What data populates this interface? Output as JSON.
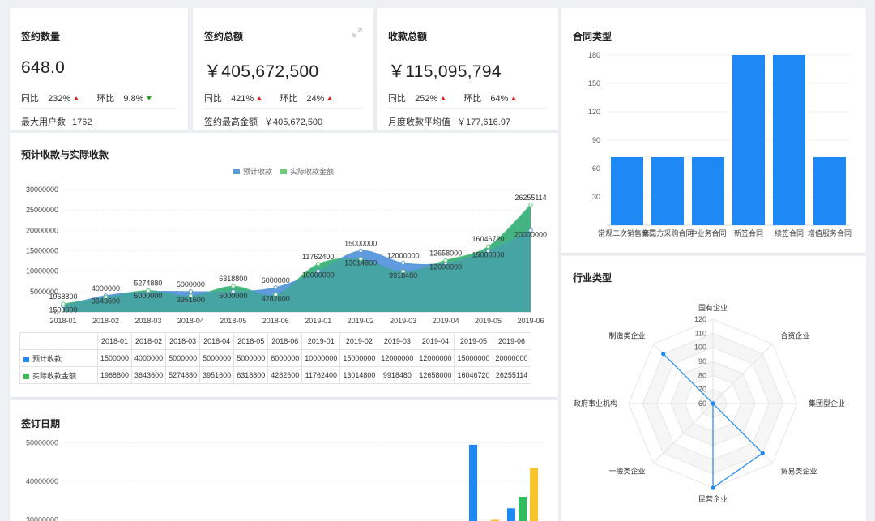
{
  "kpis": [
    {
      "title": "签约数量",
      "value": "648.0",
      "yoy_label": "同比",
      "yoy_value": "232%",
      "yoy_dir": "up",
      "mom_label": "环比",
      "mom_value": "9.8%",
      "mom_dir": "down",
      "footer_label": "最大用户数",
      "footer_value": "1762"
    },
    {
      "title": "签约总额",
      "value": "￥405,672,500",
      "yoy_label": "同比",
      "yoy_value": "421%",
      "yoy_dir": "up",
      "mom_label": "环比",
      "mom_value": "24%",
      "mom_dir": "up",
      "footer_label": "签约最高金额",
      "footer_value": "￥405,672,500"
    },
    {
      "title": "收款总额",
      "value": "￥115,095,794",
      "yoy_label": "同比",
      "yoy_value": "252%",
      "yoy_dir": "up",
      "mom_label": "环比",
      "mom_value": "64%",
      "mom_dir": "up",
      "footer_label": "月度收款平均值",
      "footer_value": "￥177,616.97"
    }
  ],
  "colors": {
    "blue": "#5b9bd5",
    "blue_fill": "#4f8fdc",
    "green": "#67cd7b",
    "green_fill": "#3fb27f",
    "bar_blue": "#1e88f5",
    "bar_yellow": "#f7c42b",
    "up": "#e02020",
    "down": "#2ea121"
  },
  "collection_chart": {
    "title": "预计收款与实际收款",
    "chart_data": {
      "type": "area",
      "categories": [
        "2018-01",
        "2018-02",
        "2018-03",
        "2018-04",
        "2018-05",
        "2018-06",
        "2019-01",
        "2019-02",
        "2019-03",
        "2019-04",
        "2019-05",
        "2019-06"
      ],
      "series": [
        {
          "name": "预计收款",
          "values": [
            1500000,
            4000000,
            5000000,
            5000000,
            5000000,
            6000000,
            10000000,
            15000000,
            12000000,
            12000000,
            15000000,
            20000000
          ]
        },
        {
          "name": "实际收款金额",
          "values": [
            1968800,
            3643600,
            5274880,
            3951600,
            6318800,
            4282600,
            11762400,
            13014800,
            9918480,
            12658000,
            16046720,
            26255114
          ]
        }
      ],
      "y_ticks": [
        "0",
        "5000000",
        "10000000",
        "15000000",
        "20000000",
        "25000000",
        "30000000"
      ],
      "ylim": [
        0,
        30000000
      ],
      "legend": "top"
    }
  },
  "contract_chart": {
    "title": "合同类型",
    "chart_data": {
      "type": "bar",
      "categories": [
        "常规二次销售合同",
        "第三方采购合同",
        "中业务合同",
        "新签合同",
        "续签合同",
        "增值服务合同"
      ],
      "values": [
        72,
        72,
        72,
        180,
        180,
        72
      ],
      "y_ticks": [
        "30",
        "60",
        "90",
        "120",
        "150",
        "180"
      ],
      "ylim": [
        0,
        180
      ]
    }
  },
  "industry_chart": {
    "title": "行业类型",
    "chart_data": {
      "type": "radar",
      "indicators": [
        "国有企业",
        "合资企业",
        "集团型企业",
        "贸易类企业",
        "民营企业",
        "一般类企业",
        "政府事业机构",
        "制造类企业"
      ],
      "values": [
        60,
        60,
        60,
        110,
        120,
        60,
        60,
        110
      ],
      "r_ticks": [
        "60",
        "70",
        "80",
        "90",
        "100",
        "110",
        "120"
      ],
      "rlim": [
        60,
        120
      ]
    }
  },
  "date_chart": {
    "title": "签订日期",
    "chart_data": {
      "type": "bar",
      "y_ticks": [
        "30000000",
        "40000000",
        "50000000"
      ],
      "ylim": [
        28000000,
        56000000
      ],
      "bars": [
        {
          "color": "blue",
          "value": 49500000
        },
        {
          "color": "yellow",
          "value": 30000000
        },
        {
          "color": "blue",
          "value": 33000000
        },
        {
          "color": "green",
          "value": 36000000
        },
        {
          "color": "yellow",
          "value": 43500000
        }
      ]
    }
  }
}
